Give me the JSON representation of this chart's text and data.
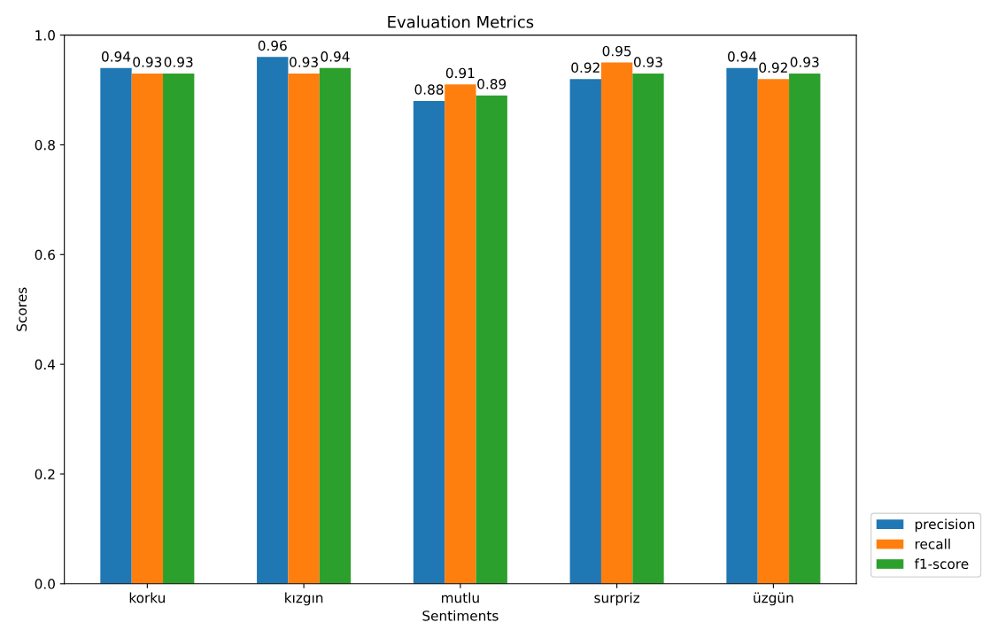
{
  "chart_data": {
    "type": "bar",
    "title": "Evaluation Metrics",
    "xlabel": "Sentiments",
    "ylabel": "Scores",
    "categories": [
      "korku",
      "kızgın",
      "mutlu",
      "surpriz",
      "üzgün"
    ],
    "series": [
      {
        "name": "precision",
        "color": "#1f77b4",
        "values": [
          0.94,
          0.96,
          0.88,
          0.92,
          0.94
        ]
      },
      {
        "name": "recall",
        "color": "#ff7f0e",
        "values": [
          0.93,
          0.93,
          0.91,
          0.95,
          0.92
        ]
      },
      {
        "name": "f1-score",
        "color": "#2ca02c",
        "values": [
          0.93,
          0.94,
          0.89,
          0.93,
          0.93
        ]
      }
    ],
    "ylim": [
      0.0,
      1.0
    ],
    "yticks": [
      {
        "value": 0,
        "label": "0.0"
      },
      0.2,
      0.4,
      0.6,
      0.8,
      {
        "value": 1,
        "label": "1.0"
      }
    ],
    "data_labels": true,
    "legend": "bottom right",
    "grid": false
  }
}
